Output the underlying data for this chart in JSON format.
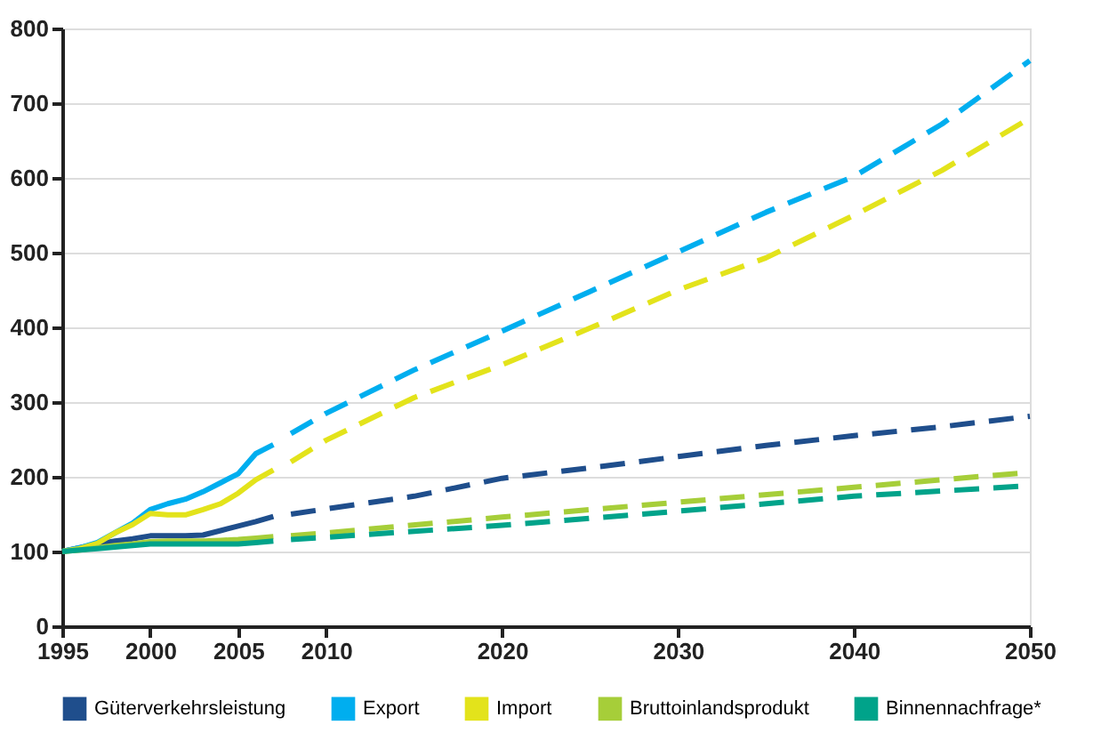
{
  "chart_data": {
    "type": "line",
    "xlim": [
      1995,
      2050
    ],
    "xticks": [
      1995,
      2000,
      2005,
      2010,
      2020,
      2030,
      2040,
      2050
    ],
    "ylim": [
      0,
      800
    ],
    "yticks": [
      0,
      100,
      200,
      300,
      400,
      500,
      600,
      700,
      800
    ],
    "grid": "y",
    "legend": "bottom",
    "series": [
      {
        "name": "Güterverkehrsleistung",
        "color": "#1f4e8c",
        "line_style": "solid",
        "x": [
          1995,
          1996,
          1997,
          1998,
          1999,
          2000,
          2001,
          2002,
          2003,
          2004,
          2005,
          2006,
          2007
        ],
        "values": [
          100,
          105,
          110,
          114,
          117,
          121,
          121,
          121,
          122,
          128,
          134,
          140,
          147
        ]
      },
      {
        "name": "Export",
        "color": "#00aeef",
        "line_style": "solid",
        "x": [
          1995,
          1996,
          1997,
          1998,
          1999,
          2000,
          2001,
          2002,
          2003,
          2004,
          2005,
          2006,
          2007
        ],
        "values": [
          100,
          105,
          112,
          125,
          138,
          156,
          164,
          170,
          180,
          192,
          204,
          231,
          243
        ]
      },
      {
        "name": "Import",
        "color": "#e3e31b",
        "line_style": "solid",
        "x": [
          1995,
          1996,
          1997,
          1998,
          1999,
          2000,
          2001,
          2002,
          2003,
          2004,
          2005,
          2006,
          2007
        ],
        "values": [
          100,
          104,
          111,
          125,
          136,
          151,
          149,
          149,
          156,
          164,
          178,
          196,
          209
        ]
      },
      {
        "name": "Bruttoinlandsprodukt",
        "color": "#a6ce39",
        "line_style": "solid",
        "x": [
          1995,
          1996,
          1997,
          1998,
          1999,
          2000,
          2001,
          2002,
          2003,
          2004,
          2005,
          2006,
          2007
        ],
        "values": [
          100,
          102,
          105,
          108,
          110,
          113,
          114,
          114,
          114,
          115,
          116,
          118,
          120
        ]
      },
      {
        "name": "Binnennachfrage*",
        "color": "#00a38a",
        "line_style": "solid",
        "x": [
          1995,
          1996,
          1997,
          1998,
          1999,
          2000,
          2001,
          2002,
          2003,
          2004,
          2005,
          2006,
          2007
        ],
        "values": [
          100,
          102,
          104,
          106,
          108,
          110,
          110,
          110,
          110,
          110,
          110,
          112,
          114
        ]
      },
      {
        "color": "#1f4e8c",
        "line_style": "dashed",
        "x": [
          2008,
          2010,
          2015,
          2020,
          2025,
          2030,
          2035,
          2040,
          2045,
          2050
        ],
        "values": [
          150,
          157,
          174,
          198,
          212,
          227,
          242,
          255,
          267,
          281
        ]
      },
      {
        "color": "#00aeef",
        "line_style": "dashed",
        "x": [
          2008,
          2010,
          2015,
          2020,
          2025,
          2030,
          2035,
          2040,
          2045,
          2050
        ],
        "values": [
          258,
          285,
          343,
          395,
          448,
          501,
          554,
          602,
          672,
          757
        ]
      },
      {
        "color": "#e3e31b",
        "line_style": "dashed",
        "x": [
          2008,
          2010,
          2015,
          2020,
          2025,
          2030,
          2035,
          2040,
          2045,
          2050
        ],
        "values": [
          220,
          249,
          306,
          350,
          399,
          450,
          493,
          550,
          610,
          680
        ]
      },
      {
        "color": "#a6ce39",
        "line_style": "dashed",
        "x": [
          2008,
          2010,
          2020,
          2030,
          2040,
          2050
        ],
        "values": [
          121,
          125,
          146,
          166,
          186,
          206
        ]
      },
      {
        "color": "#00a38a",
        "line_style": "dashed",
        "x": [
          2008,
          2010,
          2020,
          2030,
          2040,
          2050
        ],
        "values": [
          116,
          119,
          135,
          154,
          174,
          188
        ]
      }
    ]
  }
}
